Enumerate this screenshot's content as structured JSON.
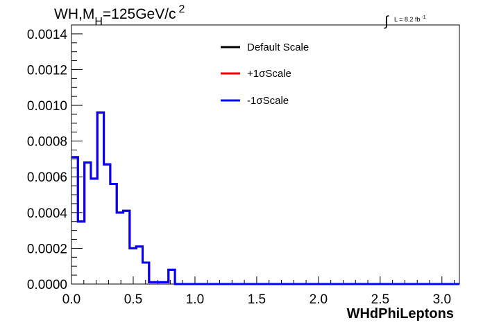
{
  "chart_data": {
    "type": "line",
    "title": {
      "main": "WH,M",
      "sub": "H",
      "rest": "=125GeV/c",
      "sup": "2"
    },
    "lumi": {
      "integral": "∫",
      "text": "L = 8.2 fb",
      "sup": "-1"
    },
    "xlabel": "WHdPhiLeptons",
    "ylabel": "",
    "xlim": [
      0.0,
      3.14159
    ],
    "ylim": [
      0.0,
      0.00145
    ],
    "x_ticks": [
      "0.0",
      "0.5",
      "1.0",
      "1.5",
      "2.0",
      "2.5",
      "3.0"
    ],
    "x_tick_values": [
      0.0,
      0.5,
      1.0,
      1.5,
      2.0,
      2.5,
      3.0
    ],
    "y_ticks": [
      "0.0000",
      "0.0002",
      "0.0004",
      "0.0006",
      "0.0008",
      "0.0010",
      "0.0012",
      "0.0014"
    ],
    "y_tick_values": [
      0.0,
      0.0002,
      0.0004,
      0.0006,
      0.0008,
      0.001,
      0.0012,
      0.0014
    ],
    "bin_edges": [
      0.0,
      0.0524,
      0.1047,
      0.1571,
      0.2094,
      0.2618,
      0.3142,
      0.3665,
      0.4189,
      0.4712,
      0.5236,
      0.576,
      0.6283,
      0.6807,
      0.733,
      0.7854,
      0.8378,
      0.8901,
      0.9425,
      3.1416
    ],
    "series": [
      {
        "name": "Default Scale",
        "color": "#000000",
        "values": [
          0.00071,
          0.00035,
          0.00068,
          0.00059,
          0.00096,
          0.00067,
          0.00056,
          0.0004,
          0.00041,
          0.0002,
          0.00021,
          0.00012,
          1e-05,
          1e-05,
          1e-05,
          8e-05,
          0.0,
          0.0,
          0.0
        ]
      },
      {
        "name": "+1σScale",
        "color": "#ff0000",
        "values": [
          0.00071,
          0.00035,
          0.00068,
          0.00059,
          0.00096,
          0.00067,
          0.00056,
          0.0004,
          0.00041,
          0.0002,
          0.00021,
          0.00012,
          1e-05,
          1e-05,
          1e-05,
          8e-05,
          0.0,
          0.0,
          0.0
        ]
      },
      {
        "name": "-1σScale",
        "color": "#0000ff",
        "values": [
          0.00071,
          0.00035,
          0.00068,
          0.00059,
          0.00096,
          0.00067,
          0.00056,
          0.0004,
          0.00041,
          0.0002,
          0.00021,
          0.00012,
          1e-05,
          1e-05,
          1e-05,
          8e-05,
          0.0,
          0.0,
          0.0
        ]
      }
    ],
    "legend": "top-center"
  }
}
